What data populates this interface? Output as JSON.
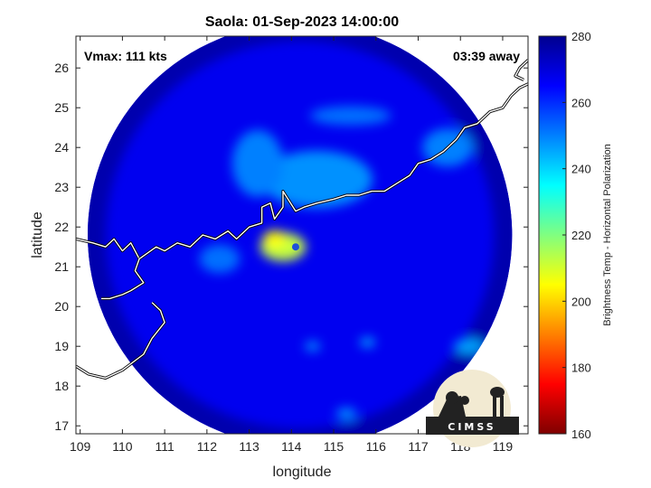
{
  "chart_data": {
    "type": "heatmap",
    "title": "Saola: 01-Sep-2023 14:00:00",
    "xlabel": "longitude",
    "ylabel": "latitude",
    "xlim": [
      108.9,
      119.6
    ],
    "ylim": [
      16.8,
      26.8
    ],
    "xticks": [
      109,
      110,
      111,
      112,
      113,
      114,
      115,
      116,
      117,
      118,
      119
    ],
    "yticks": [
      17,
      18,
      19,
      20,
      21,
      22,
      23,
      24,
      25,
      26
    ],
    "annotation_left": "Vmax: 111 kts",
    "annotation_right": "03:39 away",
    "colorbar": {
      "label": "Brightness Temp - Horizontal Polarization",
      "min": 160,
      "max": 280,
      "ticks": [
        160,
        180,
        200,
        220,
        240,
        260,
        280
      ],
      "colormap": [
        "#7f0000",
        "#ff0000",
        "#ff8000",
        "#ffff00",
        "#80ff80",
        "#00ffff",
        "#0080ff",
        "#0000ff",
        "#00008f"
      ]
    },
    "swath": {
      "center_lon": 114.2,
      "center_lat": 21.8,
      "radius_deg": 5.4
    },
    "storm_center": {
      "lon": 114.1,
      "lat": 21.5
    },
    "features": [
      {
        "lon": 113.8,
        "lat": 21.5,
        "sx": 0.9,
        "sy": 0.6,
        "tb": 212
      },
      {
        "lon": 113.6,
        "lat": 21.7,
        "sx": 0.45,
        "sy": 0.35,
        "tb": 205
      },
      {
        "lon": 114.6,
        "lat": 23.2,
        "sx": 2.2,
        "sy": 1.2,
        "tb": 248
      },
      {
        "lon": 113.2,
        "lat": 23.6,
        "sx": 1.0,
        "sy": 1.4,
        "tb": 250
      },
      {
        "lon": 117.7,
        "lat": 24.0,
        "sx": 1.0,
        "sy": 0.8,
        "tb": 250
      },
      {
        "lon": 115.4,
        "lat": 24.8,
        "sx": 1.6,
        "sy": 0.4,
        "tb": 252
      },
      {
        "lon": 112.3,
        "lat": 21.2,
        "sx": 0.8,
        "sy": 0.6,
        "tb": 252
      },
      {
        "lon": 118.2,
        "lat": 19.0,
        "sx": 0.6,
        "sy": 0.3,
        "tb": 246
      },
      {
        "lon": 115.8,
        "lat": 19.1,
        "sx": 0.3,
        "sy": 0.2,
        "tb": 245
      },
      {
        "lon": 114.5,
        "lat": 19.0,
        "sx": 0.3,
        "sy": 0.2,
        "tb": 247
      },
      {
        "lon": 115.3,
        "lat": 17.3,
        "sx": 0.4,
        "sy": 0.25,
        "tb": 248
      }
    ],
    "coastlines": [
      [
        [
          108.9,
          21.7
        ],
        [
          109.3,
          21.6
        ],
        [
          109.6,
          21.5
        ],
        [
          109.8,
          21.7
        ],
        [
          110.0,
          21.4
        ],
        [
          110.2,
          21.6
        ],
        [
          110.4,
          21.2
        ],
        [
          110.3,
          20.9
        ],
        [
          110.5,
          20.6
        ],
        [
          110.2,
          20.4
        ],
        [
          110.0,
          20.3
        ],
        [
          109.7,
          20.2
        ],
        [
          109.5,
          20.2
        ]
      ],
      [
        [
          110.4,
          21.2
        ],
        [
          110.8,
          21.5
        ],
        [
          111.0,
          21.4
        ],
        [
          111.3,
          21.6
        ],
        [
          111.6,
          21.5
        ],
        [
          111.9,
          21.8
        ],
        [
          112.2,
          21.7
        ],
        [
          112.5,
          21.9
        ],
        [
          112.7,
          21.7
        ],
        [
          113.0,
          22.0
        ],
        [
          113.3,
          22.1
        ],
        [
          113.3,
          22.5
        ],
        [
          113.5,
          22.6
        ],
        [
          113.6,
          22.2
        ],
        [
          113.8,
          22.5
        ],
        [
          113.8,
          22.9
        ],
        [
          114.1,
          22.4
        ],
        [
          114.3,
          22.5
        ],
        [
          114.6,
          22.6
        ],
        [
          115.0,
          22.7
        ],
        [
          115.3,
          22.8
        ],
        [
          115.6,
          22.8
        ],
        [
          115.9,
          22.9
        ],
        [
          116.2,
          22.9
        ],
        [
          116.5,
          23.1
        ],
        [
          116.8,
          23.3
        ],
        [
          117.0,
          23.6
        ],
        [
          117.3,
          23.7
        ],
        [
          117.6,
          23.9
        ],
        [
          117.9,
          24.2
        ],
        [
          118.1,
          24.5
        ],
        [
          118.4,
          24.6
        ],
        [
          118.7,
          24.9
        ],
        [
          119.0,
          25.0
        ],
        [
          119.2,
          25.3
        ],
        [
          119.4,
          25.5
        ],
        [
          119.6,
          25.6
        ]
      ],
      [
        [
          119.6,
          26.2
        ],
        [
          119.4,
          26.0
        ],
        [
          119.3,
          25.8
        ],
        [
          119.5,
          25.7
        ]
      ],
      [
        [
          110.7,
          20.1
        ],
        [
          110.9,
          19.9
        ],
        [
          111.0,
          19.6
        ],
        [
          110.7,
          19.2
        ],
        [
          110.5,
          18.8
        ],
        [
          110.0,
          18.4
        ],
        [
          109.6,
          18.2
        ],
        [
          109.2,
          18.3
        ],
        [
          108.9,
          18.5
        ]
      ]
    ]
  }
}
